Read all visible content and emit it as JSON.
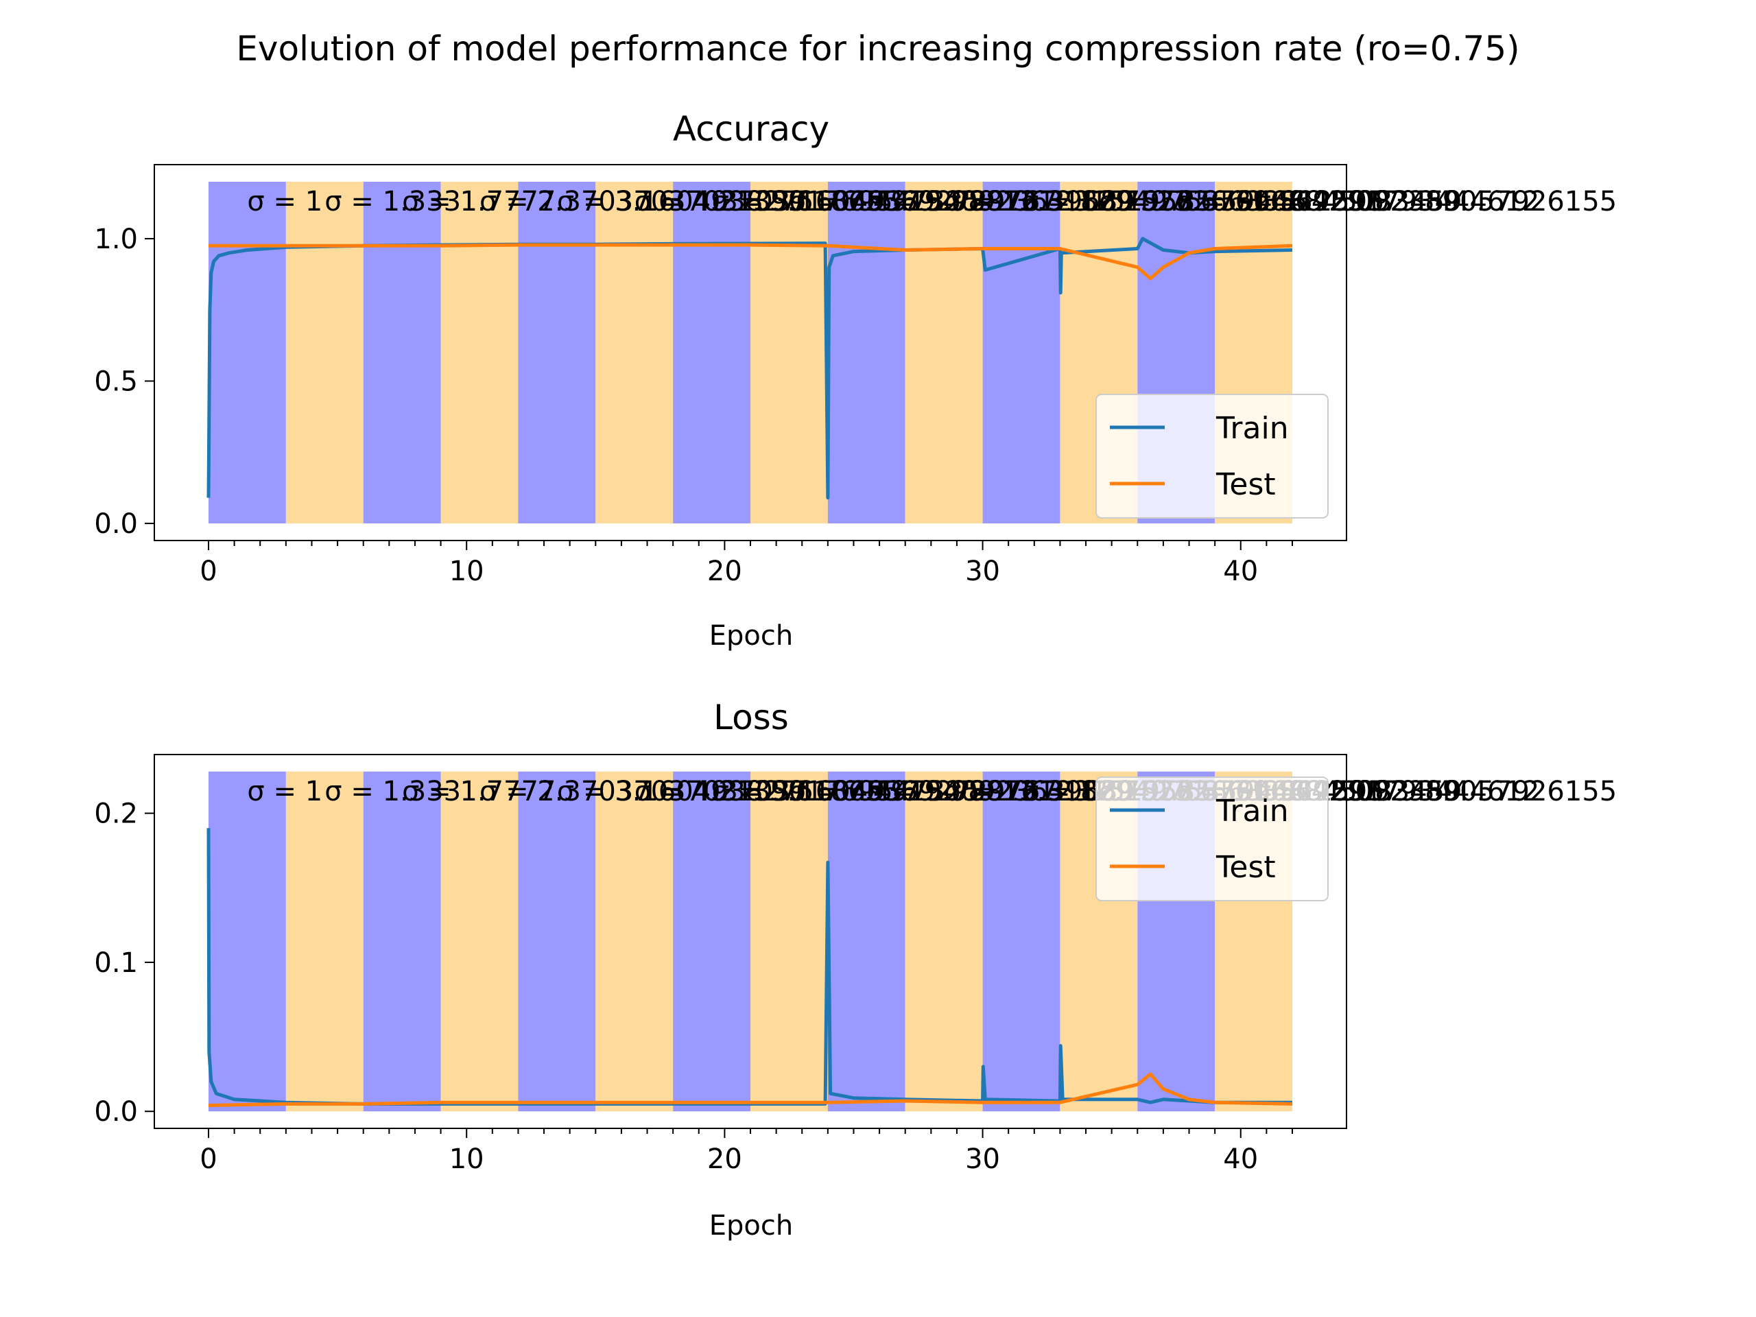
{
  "suptitle": "Evolution of model performance for increasing compression rate (ro=0.75)",
  "colors": {
    "train": "#1f77b4",
    "test": "#ff7f0e",
    "band_blue": "#9999ff",
    "band_orange": "#ffdb9b"
  },
  "legend": {
    "train": "Train",
    "test": "Test",
    "placement": [
      "lower-right",
      "upper-right"
    ]
  },
  "bands": {
    "edges": [
      0,
      3,
      6,
      9,
      12,
      15,
      18,
      21,
      24,
      27,
      30,
      33,
      36,
      39,
      42
    ],
    "colors": [
      "blue",
      "orange",
      "blue",
      "orange",
      "blue",
      "orange",
      "blue",
      "orange",
      "blue",
      "orange",
      "blue",
      "orange",
      "blue",
      "orange"
    ]
  },
  "annotations": [
    "σ = 1",
    "σ = 1.333",
    "σ = 1.7777",
    "σ = 2.37037037037037",
    "σ = 3.1604938271604937",
    "σ = 4.213991769547325",
    "σ = 5.618655692729767",
    "σ = 7.491540923639689",
    "σ = 9.988721231519585",
    "σ = 13.318294975359446",
    "σ = 17.757726633812595",
    "σ = 23.676968845083459",
    "σ = 31.569291793444612",
    "σ = 42.092389057926155"
  ],
  "chart_data": [
    {
      "type": "line",
      "title": "Accuracy",
      "xlabel": "Epoch",
      "ylabel": "",
      "xlim": [
        -2.1,
        44.1
      ],
      "ylim": [
        -0.06,
        1.26
      ],
      "xticks": [
        "0",
        "10",
        "20",
        "30",
        "40"
      ],
      "yticks": [
        "0.0",
        "0.5",
        "1.0"
      ],
      "grid": false,
      "legend": "lower-right",
      "series": [
        {
          "name": "Train",
          "x": [
            0,
            0.05,
            0.1,
            0.2,
            0.4,
            0.8,
            1.5,
            3,
            6,
            9,
            12,
            15,
            18,
            21,
            23.9,
            24,
            24.05,
            24.2,
            25,
            27,
            30,
            30.1,
            33,
            33.02,
            33.05,
            36,
            36.2,
            37,
            38,
            39,
            42
          ],
          "y": [
            0.09,
            0.75,
            0.88,
            0.92,
            0.94,
            0.95,
            0.96,
            0.97,
            0.975,
            0.978,
            0.98,
            0.98,
            0.982,
            0.983,
            0.984,
            0.09,
            0.9,
            0.94,
            0.955,
            0.96,
            0.965,
            0.89,
            0.965,
            0.81,
            0.95,
            0.965,
            1.0,
            0.96,
            0.95,
            0.955,
            0.96
          ]
        },
        {
          "name": "Test",
          "x": [
            0,
            3,
            6,
            9,
            12,
            15,
            18,
            21,
            24,
            27,
            30,
            33,
            36,
            36.5,
            37,
            38,
            39,
            42
          ],
          "y": [
            0.975,
            0.975,
            0.975,
            0.975,
            0.978,
            0.978,
            0.978,
            0.978,
            0.975,
            0.96,
            0.965,
            0.965,
            0.9,
            0.86,
            0.9,
            0.95,
            0.965,
            0.975
          ]
        }
      ]
    },
    {
      "type": "line",
      "title": "Loss",
      "xlabel": "Epoch",
      "ylabel": "",
      "xlim": [
        -2.1,
        44.1
      ],
      "ylim": [
        -0.0114,
        0.2394
      ],
      "xticks": [
        "0",
        "10",
        "20",
        "30",
        "40"
      ],
      "yticks": [
        "0.0",
        "0.1",
        "0.2"
      ],
      "grid": false,
      "legend": "upper-right",
      "series": [
        {
          "name": "Train",
          "x": [
            0,
            0.02,
            0.1,
            0.3,
            1,
            3,
            6,
            9,
            12,
            15,
            18,
            21,
            23.9,
            24,
            24.1,
            25,
            27,
            30,
            30.02,
            30.1,
            33,
            33.02,
            33.1,
            36,
            36.5,
            37,
            39,
            42
          ],
          "y": [
            0.19,
            0.04,
            0.02,
            0.012,
            0.008,
            0.006,
            0.005,
            0.005,
            0.005,
            0.005,
            0.005,
            0.005,
            0.005,
            0.167,
            0.012,
            0.009,
            0.008,
            0.007,
            0.03,
            0.008,
            0.007,
            0.044,
            0.008,
            0.008,
            0.006,
            0.008,
            0.006,
            0.006
          ]
        },
        {
          "name": "Test",
          "x": [
            0,
            3,
            6,
            9,
            12,
            15,
            18,
            21,
            24,
            27,
            30,
            33,
            36,
            36.5,
            37,
            38,
            39,
            42
          ],
          "y": [
            0.004,
            0.005,
            0.005,
            0.006,
            0.006,
            0.006,
            0.006,
            0.006,
            0.006,
            0.007,
            0.006,
            0.006,
            0.018,
            0.025,
            0.015,
            0.008,
            0.006,
            0.005
          ]
        }
      ]
    }
  ]
}
